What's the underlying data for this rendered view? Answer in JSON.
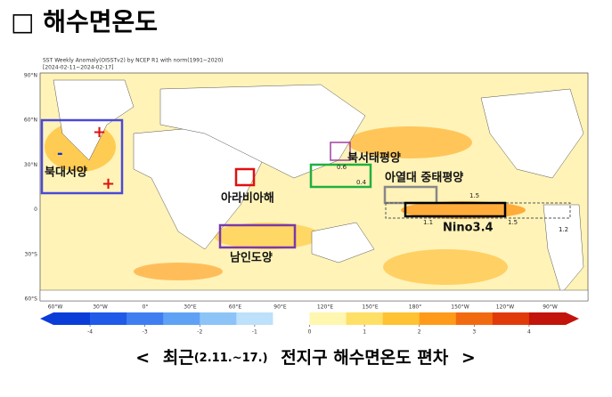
{
  "header": {
    "title": "□ 해수면온도"
  },
  "map": {
    "title": "SST Weekly Anomaly(OISSTv2) by NCEP R1 with norm(1991~2020)",
    "period": "[2024-02-11~2024-02-17]",
    "lat_labels": [
      "90°N",
      "60°N",
      "30°N",
      "0",
      "30°S",
      "60°S"
    ],
    "lon_labels": [
      "60°W",
      "30°W",
      "0°",
      "30°E",
      "60°E",
      "90°E",
      "120°E",
      "150°E",
      "180°",
      "150°W",
      "120°W",
      "90°W"
    ],
    "regions": [
      "북대서양",
      "아라비아해",
      "남인도양",
      "북서태평양",
      "아열대 중태평양",
      "Nino3.4"
    ],
    "annotations": [
      "0.6",
      "0.4",
      "1.5",
      "1.1",
      "1.5",
      "1.2"
    ],
    "colorbar": {
      "ticks": [
        -4,
        -3,
        -2,
        -1,
        0,
        1,
        2,
        3,
        4
      ],
      "colors": [
        "#0a3dd8",
        "#1f5ae8",
        "#3f7ef0",
        "#5fa2f5",
        "#8cc4f8",
        "#bde0fb",
        "#ffffff",
        "#fff6b0",
        "#ffe066",
        "#ffc233",
        "#ff9a1a",
        "#f26a10",
        "#e03a0a",
        "#c2140a"
      ]
    }
  },
  "caption": {
    "open": "<",
    "main": "최근",
    "period": "(2.11.~17.)",
    "rest": "전지구  해수면온도  편차",
    "close": ">"
  }
}
